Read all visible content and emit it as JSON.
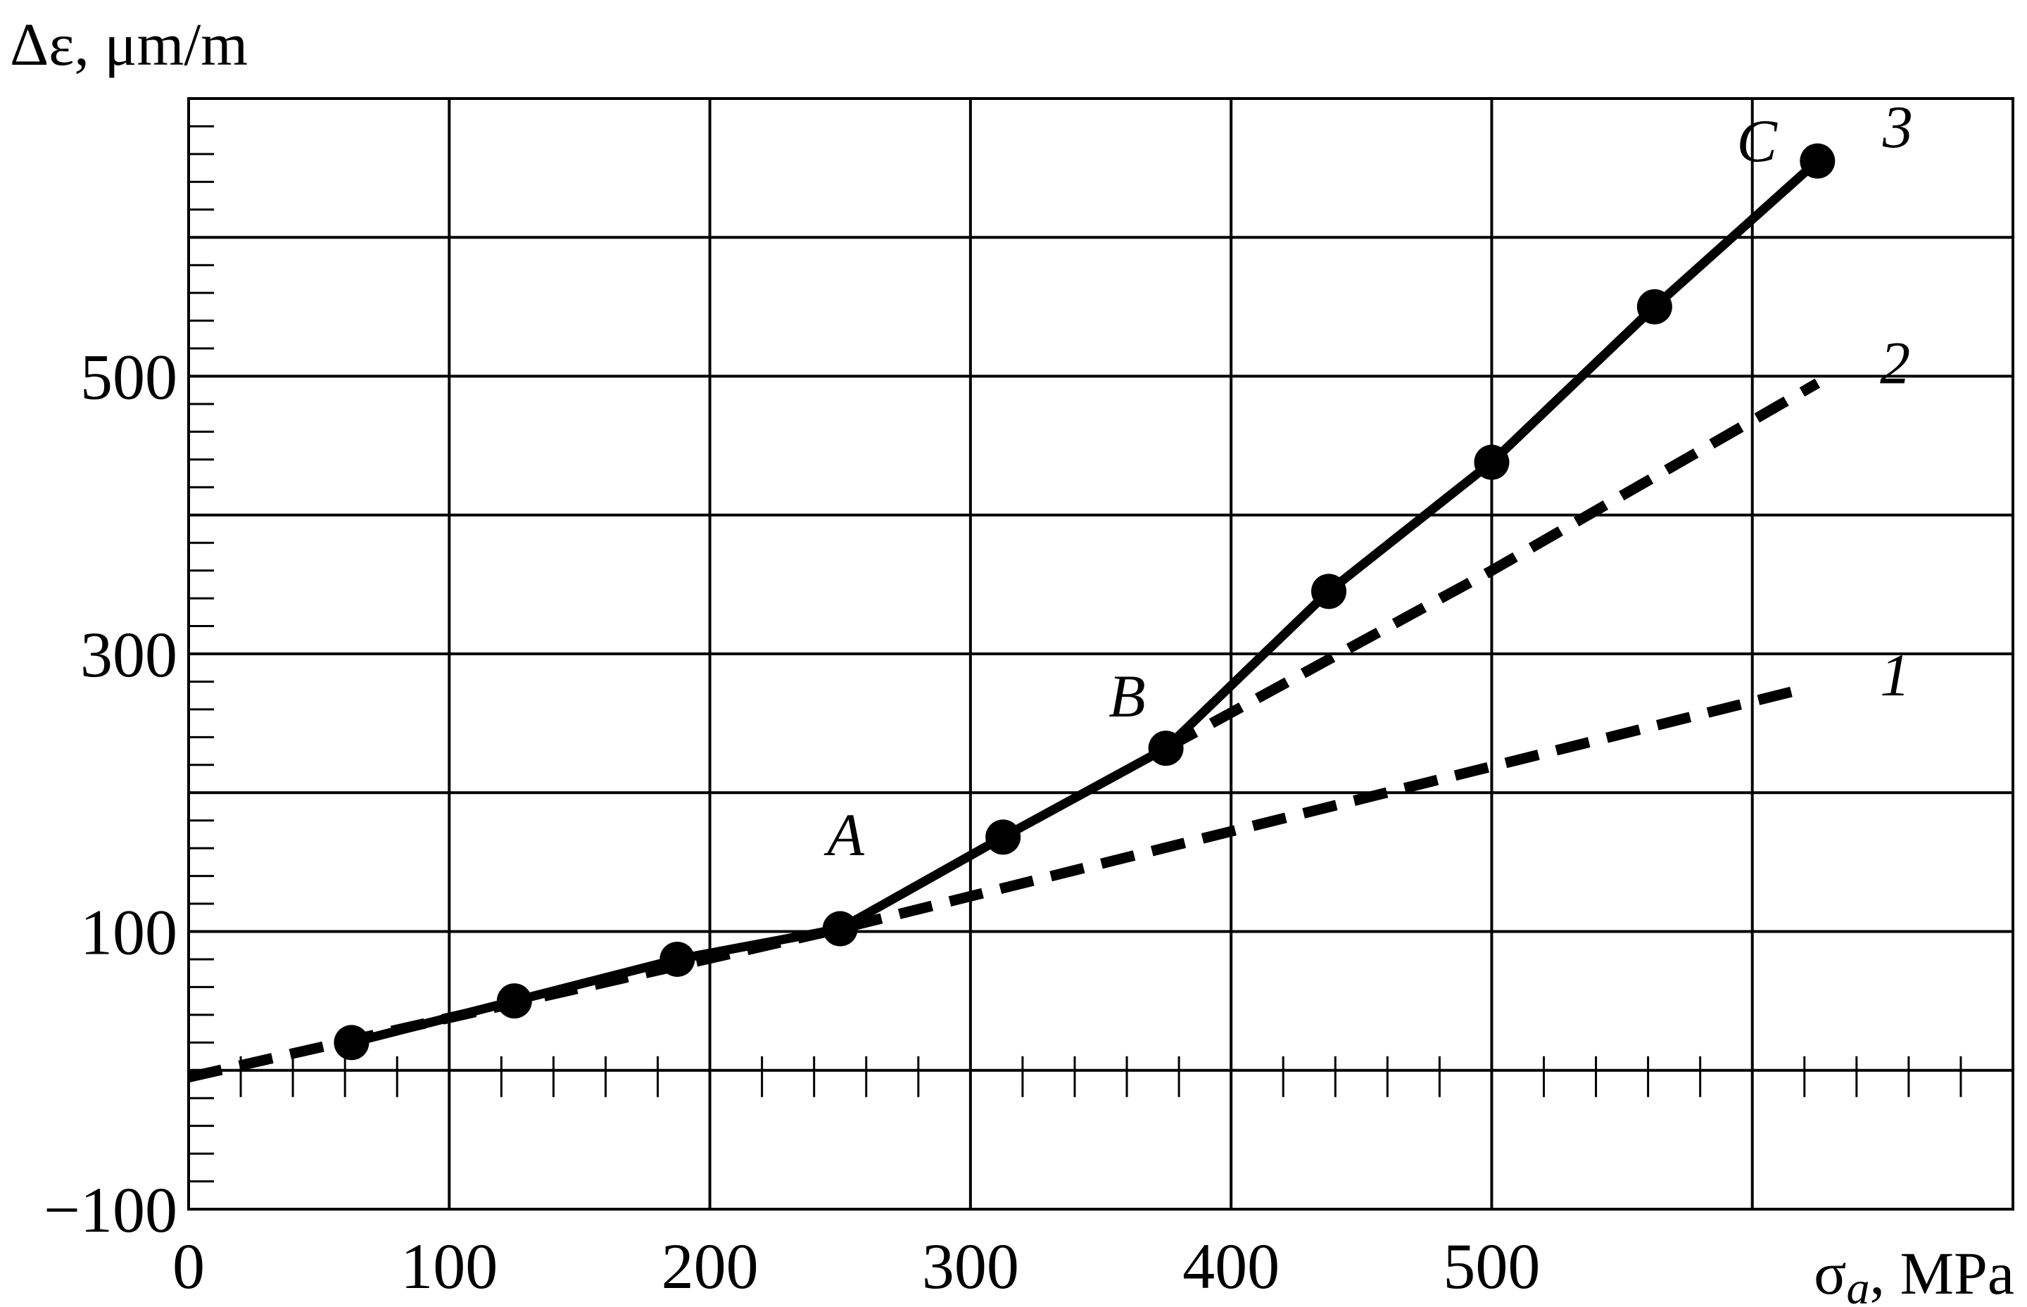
{
  "chart_data": {
    "type": "line",
    "ylabel": "Δε, μm/m",
    "xlabel_main": "σ",
    "xlabel_sub": "a",
    "xlabel_rest": ", MPa",
    "xlim": [
      0,
      700
    ],
    "ylim": [
      -100,
      700
    ],
    "grid": true,
    "x_tick_labels": [
      {
        "value": 0,
        "text": "0"
      },
      {
        "value": 100,
        "text": "100"
      },
      {
        "value": 200,
        "text": "200"
      },
      {
        "value": 300,
        "text": "300"
      },
      {
        "value": 400,
        "text": "400"
      },
      {
        "value": 500,
        "text": "500"
      }
    ],
    "y_tick_labels": [
      {
        "value": -100,
        "text": "−100"
      },
      {
        "value": 100,
        "text": "100"
      },
      {
        "value": 300,
        "text": "300"
      },
      {
        "value": 500,
        "text": "500"
      }
    ],
    "x_gridlines": [
      100,
      200,
      300,
      400,
      500,
      600
    ],
    "y_gridlines": [
      0,
      100,
      200,
      300,
      400,
      500,
      600
    ],
    "x_minor_step": 20,
    "y_minor_step": 20,
    "series": [
      {
        "name": "3",
        "style": "solid",
        "marker": "circle",
        "points": [
          [
            62.5,
            20
          ],
          [
            125,
            50
          ],
          [
            187.5,
            80
          ],
          [
            250,
            102
          ],
          [
            312.5,
            168
          ],
          [
            375,
            232
          ],
          [
            437.5,
            345
          ],
          [
            500,
            438
          ],
          [
            562.5,
            550
          ],
          [
            625,
            655
          ]
        ]
      },
      {
        "name": "2",
        "style": "dashed",
        "marker": "none",
        "points": [
          [
            375,
            232
          ],
          [
            500,
            360
          ],
          [
            625,
            495
          ]
        ]
      },
      {
        "name": "1",
        "style": "dashed",
        "marker": "none",
        "points": [
          [
            0,
            -5
          ],
          [
            250,
            102
          ],
          [
            620,
            275
          ]
        ]
      }
    ],
    "annotations": [
      {
        "text": "A",
        "x": 245,
        "y": 155
      },
      {
        "text": "B",
        "x": 353,
        "y": 255
      },
      {
        "text": "C",
        "x": 594,
        "y": 655
      }
    ],
    "curve_labels": [
      {
        "text": "3",
        "x": 650,
        "y": 665
      },
      {
        "text": "2",
        "x": 649,
        "y": 495
      },
      {
        "text": "1",
        "x": 649,
        "y": 270
      }
    ]
  }
}
